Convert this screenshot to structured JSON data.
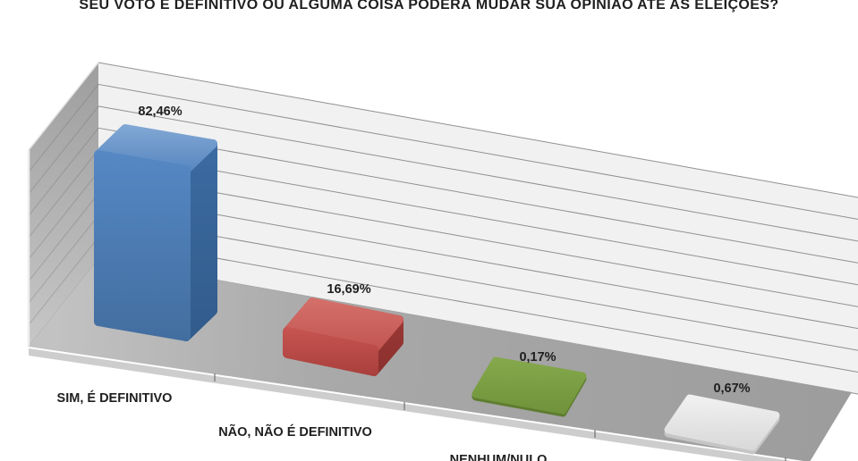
{
  "chart_data": {
    "type": "bar",
    "view": "3d-perspective",
    "title": "SEU VOTO É DEFINITIVO OU ALGUMA COISA PODERÁ MUDAR SUA OPINIÃO ATÉ AS ELEIÇÕES?",
    "categories": [
      "SIM, É DEFINITIVO",
      "NÃO, NÃO É DEFINITIVO",
      "NENHUM/NULO",
      ""
    ],
    "values": [
      82.46,
      16.69,
      0.17,
      0.67
    ],
    "value_labels": [
      "82,46%",
      "16,69%",
      "0,17%",
      "0,67%"
    ],
    "series_colors": [
      "#4d80bc",
      "#bf4b47",
      "#7aa03f",
      "#e4e4e4"
    ],
    "xlabel": "",
    "ylabel": "",
    "ylim": [
      0,
      90
    ],
    "gridlines": "on",
    "gridline_count": 10,
    "legend": "none",
    "wall_color": "#f1f1f1",
    "floor_color": "#a6a6a6",
    "label_color": "#1f1f1f"
  }
}
